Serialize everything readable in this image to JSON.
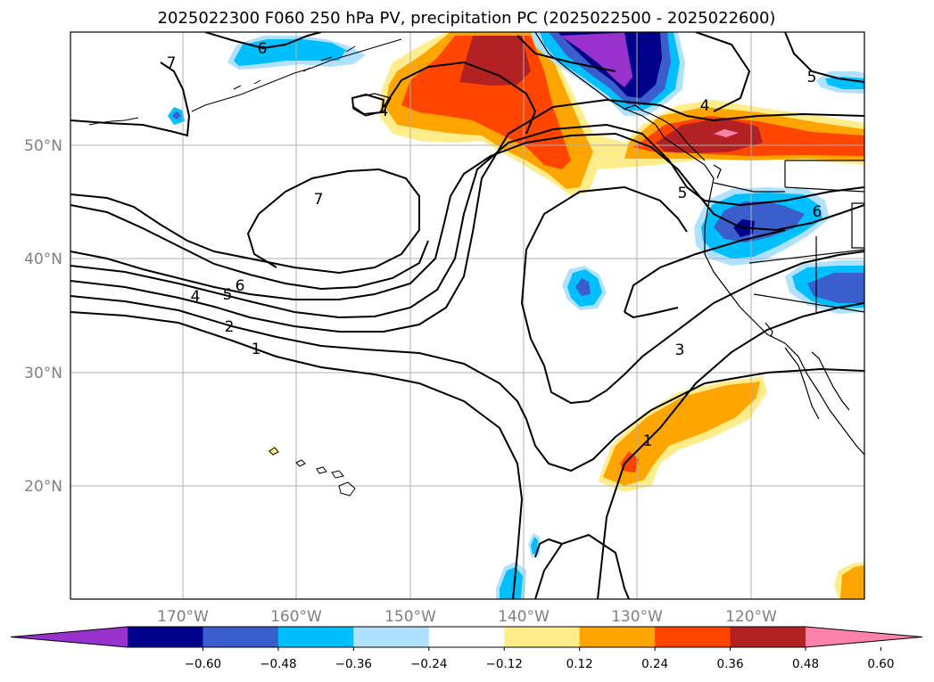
{
  "title": "2025022300 F060 250 hPa PV, precipitation PC (2025022500 - 2025022600)",
  "map": {
    "lat_labels": [
      "50°N",
      "40°N",
      "30°N",
      "20°N"
    ],
    "lon_labels": [
      "170°W",
      "160°W",
      "150°W",
      "140°W",
      "130°W",
      "120°W"
    ],
    "contour_labels": [
      "7",
      "6",
      "5",
      "4",
      "7",
      "6",
      "5",
      "4",
      "2",
      "1",
      "3",
      "1",
      "5",
      "6",
      "4"
    ]
  },
  "colorbar": {
    "ticks": [
      "−0.60",
      "−0.48",
      "−0.36",
      "−0.24",
      "−0.12",
      "0.12",
      "0.24",
      "0.36",
      "0.48",
      "0.60"
    ],
    "colors": [
      "#9932cc",
      "#00008b",
      "#3a5fcd",
      "#00bfff",
      "#b0e2ff",
      "#ffffff",
      "#ffec8b",
      "#ffa500",
      "#ff4500",
      "#b22222",
      "#ff82ab"
    ]
  },
  "colors": {
    "land_line": "#000000",
    "grid": "#b0b0b0",
    "label_gray": "#808080"
  }
}
